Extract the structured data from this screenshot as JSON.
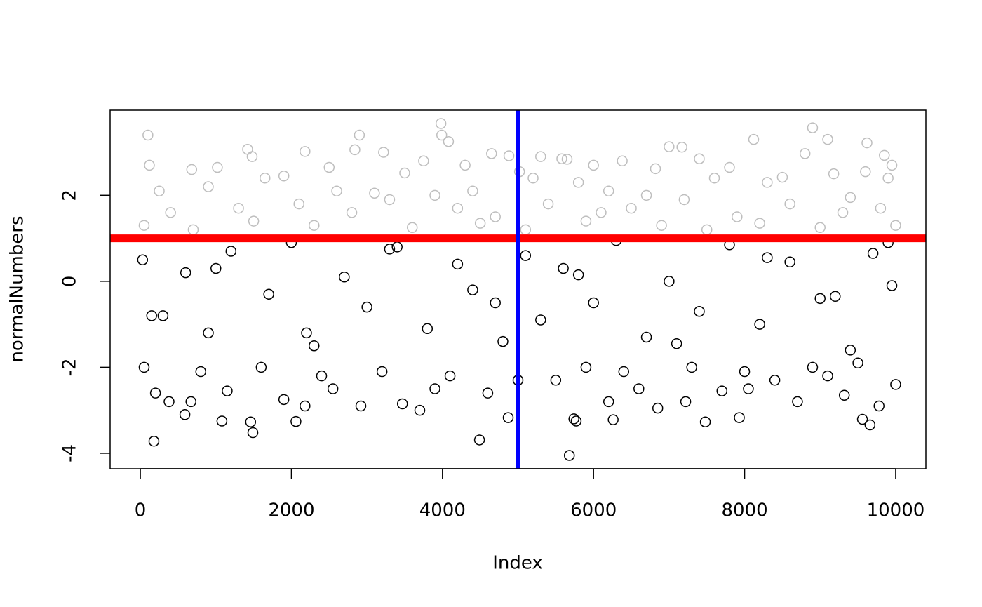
{
  "chart_data": {
    "type": "scatter",
    "xlabel": "Index",
    "ylabel": "normalNumbers",
    "xlim": [
      -400,
      10400
    ],
    "ylim": [
      -4.36,
      3.98
    ],
    "xticks": [
      0,
      2000,
      4000,
      6000,
      8000,
      10000
    ],
    "yticks": [
      -4,
      -2,
      0,
      2
    ],
    "hline": {
      "value": 1,
      "color": "#ff0000"
    },
    "vline": {
      "value": 5000,
      "color": "#0000ff"
    },
    "series": [
      {
        "color": "#bebebe",
        "x": [
          100,
          3980,
          3990,
          4080,
          2900,
          1420,
          1480,
          2180,
          2840,
          3220,
          4650,
          4880,
          5300,
          5580,
          5650,
          6000,
          6380,
          7000,
          7170,
          7400,
          8120,
          8900,
          9100,
          9620,
          9850,
          9950,
          8800,
          120,
          680,
          1020,
          1650,
          2500,
          3500,
          3750,
          4300,
          5020,
          5800,
          6820,
          7800,
          8500,
          9180,
          9600,
          250,
          900,
          1900,
          2600,
          3100,
          3900,
          4400,
          5200,
          6200,
          6700,
          7600,
          8300,
          9400,
          9900,
          400,
          1300,
          2100,
          2800,
          3300,
          4200,
          4700,
          5400,
          6100,
          6500,
          7200,
          7900,
          8600,
          9300,
          9800,
          50,
          700,
          1500,
          2300,
          3600,
          4500,
          5100,
          5900,
          6900,
          7500,
          8200,
          9000,
          10000
        ],
        "values": [
          3.4,
          3.67,
          3.4,
          3.25,
          3.4,
          3.07,
          2.9,
          3.02,
          3.06,
          3.0,
          2.97,
          2.92,
          2.9,
          2.85,
          2.84,
          2.7,
          2.8,
          3.13,
          3.12,
          2.85,
          3.3,
          3.57,
          3.3,
          3.22,
          2.93,
          2.7,
          2.97,
          2.7,
          2.6,
          2.65,
          2.4,
          2.65,
          2.52,
          2.8,
          2.7,
          2.55,
          2.3,
          2.62,
          2.65,
          2.42,
          2.5,
          2.55,
          2.1,
          2.2,
          2.45,
          2.1,
          2.05,
          2.0,
          2.1,
          2.4,
          2.1,
          2.0,
          2.4,
          2.3,
          1.95,
          2.4,
          1.6,
          1.7,
          1.8,
          1.6,
          1.9,
          1.7,
          1.5,
          1.8,
          1.6,
          1.7,
          1.9,
          1.5,
          1.8,
          1.6,
          1.7,
          1.3,
          1.2,
          1.4,
          1.3,
          1.25,
          1.35,
          1.2,
          1.4,
          1.3,
          1.2,
          1.35,
          1.25,
          1.3
        ]
      },
      {
        "color": "#000000",
        "x": [
          180,
          590,
          1080,
          1460,
          1490,
          2060,
          4490,
          4870,
          5680,
          5740,
          5770,
          6260,
          7480,
          7930,
          9560,
          9660,
          380,
          670,
          1900,
          2180,
          2920,
          3470,
          3700,
          6200,
          6850,
          7220,
          8050,
          8700,
          9320,
          9780,
          10000,
          200,
          1150,
          2550,
          3900,
          4600,
          5500,
          6600,
          7700,
          8400,
          9100,
          50,
          800,
          1600,
          2400,
          3200,
          4100,
          5000,
          5900,
          6400,
          7300,
          8000,
          8900,
          9500,
          30,
          300,
          600,
          900,
          1200,
          1700,
          2000,
          2300,
          2700,
          3000,
          3400,
          3800,
          4200,
          4400,
          4800,
          5100,
          5300,
          5600,
          6000,
          6300,
          6700,
          7000,
          7400,
          7800,
          8200,
          8600,
          9000,
          9400,
          9700,
          9950,
          150,
          1000,
          2200,
          3300,
          4700,
          5800,
          7100,
          8300,
          9200,
          9900
        ],
        "values": [
          -3.72,
          -3.1,
          -3.25,
          -3.27,
          -3.52,
          -3.26,
          -3.69,
          -3.17,
          -4.05,
          -3.2,
          -3.25,
          -3.22,
          -3.27,
          -3.17,
          -3.21,
          -3.34,
          -2.8,
          -2.8,
          -2.75,
          -2.9,
          -2.9,
          -2.85,
          -3.0,
          -2.8,
          -2.95,
          -2.8,
          -2.5,
          -2.8,
          -2.65,
          -2.9,
          -2.4,
          -2.6,
          -2.55,
          -2.5,
          -2.5,
          -2.6,
          -2.3,
          -2.5,
          -2.55,
          -2.3,
          -2.2,
          -2.0,
          -2.1,
          -2.0,
          -2.2,
          -2.1,
          -2.2,
          -2.3,
          -2.0,
          -2.1,
          -2.0,
          -2.1,
          -2.0,
          -1.9,
          0.5,
          -0.8,
          0.2,
          -1.2,
          0.7,
          -0.3,
          0.9,
          -1.5,
          0.1,
          -0.6,
          0.8,
          -1.1,
          0.4,
          -0.2,
          -1.4,
          0.6,
          -0.9,
          0.3,
          -0.5,
          0.95,
          -1.3,
          0.0,
          -0.7,
          0.85,
          -1.0,
          0.45,
          -0.4,
          -1.6,
          0.65,
          -0.1,
          -0.8,
          0.3,
          -1.2,
          0.75,
          -0.5,
          0.15,
          -1.45,
          0.55,
          -0.35,
          0.9
        ]
      }
    ]
  }
}
